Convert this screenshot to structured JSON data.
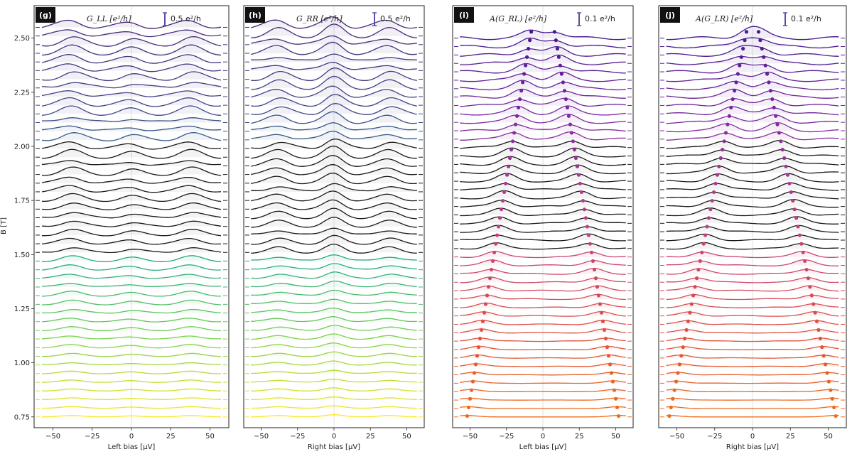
{
  "figure": {
    "y_axis_label": "B [T]",
    "y_ticks": [
      "0.75",
      "1.00",
      "1.25",
      "1.50",
      "1.75",
      "2.00",
      "2.25",
      "2.50"
    ]
  },
  "chart_data": [
    {
      "type": "line",
      "panel_tag": "(g)",
      "title": "G_LL [e²/h]",
      "scale_bar_label": "0.5 e²/h",
      "xlabel": "Left bias [μV]",
      "x_ticks": [
        "−50",
        "−25",
        "0",
        "25",
        "50"
      ],
      "x_tick_values": [
        -50,
        -25,
        0,
        25,
        50
      ],
      "xlim": [
        -62,
        62
      ],
      "ylabel": "B [T]",
      "ylim": [
        0.7,
        2.65
      ],
      "field_range_T": [
        0.75,
        2.55
      ],
      "num_traces": 46,
      "dark_trace_range_T": [
        1.5,
        2.0
      ],
      "has_markers": false,
      "colormap": "viridis"
    },
    {
      "type": "line",
      "panel_tag": "(h)",
      "title": "G_RR [e²/h]",
      "scale_bar_label": "0.5 e²/h",
      "xlabel": "Right bias [μV]",
      "x_ticks": [
        "−50",
        "−25",
        "0",
        "25",
        "50"
      ],
      "x_tick_values": [
        -50,
        -25,
        0,
        25,
        50
      ],
      "xlim": [
        -62,
        62
      ],
      "ylim": [
        0.7,
        2.65
      ],
      "field_range_T": [
        0.75,
        2.55
      ],
      "num_traces": 46,
      "dark_trace_range_T": [
        1.5,
        2.0
      ],
      "has_markers": false,
      "colormap": "viridis"
    },
    {
      "type": "line",
      "panel_tag": "(i)",
      "title": "A(G_RL) [e²/h]",
      "scale_bar_label": "0.1 e²/h",
      "xlabel": "Left bias [μV]",
      "x_ticks": [
        "−50",
        "−25",
        "0",
        "25",
        "50"
      ],
      "x_tick_values": [
        -50,
        -25,
        0,
        25,
        50
      ],
      "xlim": [
        -62,
        62
      ],
      "ylim": [
        0.7,
        2.65
      ],
      "field_range_T": [
        0.75,
        2.5
      ],
      "num_traces": 46,
      "dark_trace_range_T": [
        1.5,
        2.0
      ],
      "has_markers": true,
      "marker_peak_start_uV": -52,
      "marker_peak_end_uV": -8,
      "colormap": "plasma"
    },
    {
      "type": "line",
      "panel_tag": "(j)",
      "title": "A(G_LR) [e²/h]",
      "scale_bar_label": "0.1 e²/h",
      "xlabel": "Right bias [μV]",
      "x_ticks": [
        "−50",
        "−25",
        "0",
        "25",
        "50"
      ],
      "x_tick_values": [
        -50,
        -25,
        0,
        25,
        50
      ],
      "xlim": [
        -62,
        62
      ],
      "ylim": [
        0.7,
        2.65
      ],
      "field_range_T": [
        0.75,
        2.5
      ],
      "num_traces": 46,
      "dark_trace_range_T": [
        1.5,
        2.0
      ],
      "has_markers": true,
      "marker_peak_start_uV": -55,
      "marker_peak_end_uV": -4,
      "colormap": "plasma"
    }
  ]
}
